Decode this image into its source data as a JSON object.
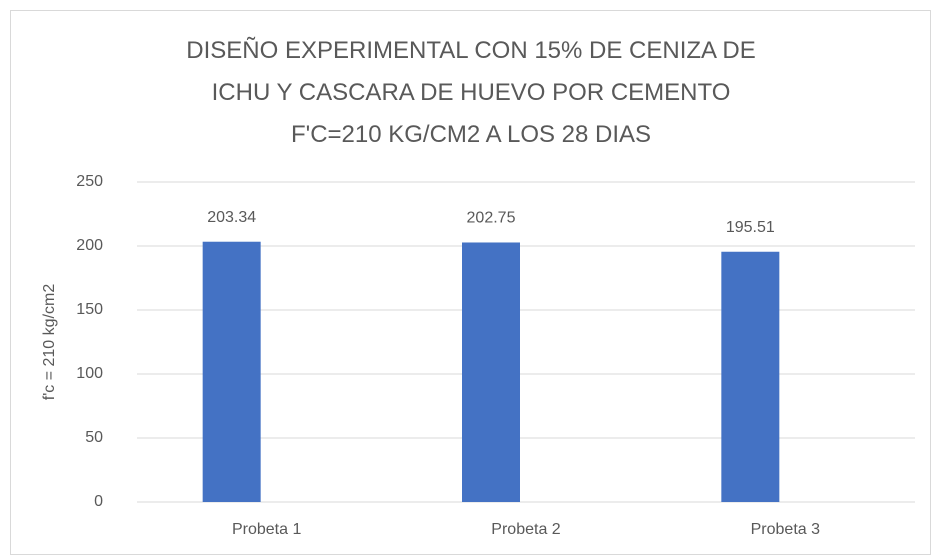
{
  "chart_data": {
    "type": "bar",
    "title": "DISEÑO EXPERIMENTAL CON 15% DE CENIZA DE ICHU Y CASCARA DE HUEVO POR CEMENTO F'C=210 KG/CM2 A LOS 28 DIAS",
    "y_label": "f'c = 210 kg/cm2",
    "categories": [
      "Probeta 1",
      "Probeta 2",
      "Probeta 3"
    ],
    "values": [
      203.34,
      202.75,
      195.51
    ],
    "color": "#4472c4",
    "ylim": [
      0,
      250
    ],
    "yticks": [
      0,
      50,
      100,
      150,
      200,
      250
    ],
    "grid": true
  }
}
